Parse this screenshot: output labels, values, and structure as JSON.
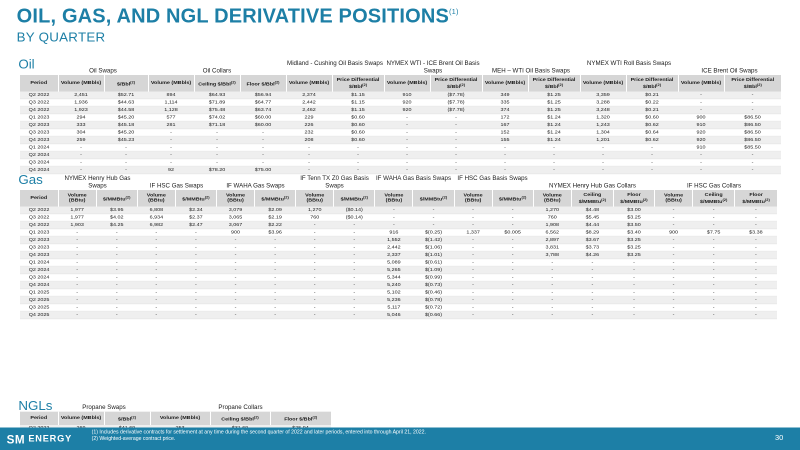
{
  "title": "OIL, GAS, AND NGL DERIVATIVE POSITIONS",
  "title_sup": "(1)",
  "subtitle": "BY QUARTER",
  "oil": {
    "label": "Oil",
    "groups": [
      "Oil Swaps",
      "Oil Collars",
      "Midland - Cushing Oil Basis Swaps",
      "NYMEX WTI - ICE Brent Oil Basis Swaps",
      "MEH – WTI Oil Basis Swaps",
      "NYMEX WTI Roll Basis Swaps",
      "ICE Brent Oil Swaps"
    ],
    "headers": [
      "Period",
      "Volume (MBbls)",
      "$/Bbl(2)",
      "Volume (MBbls)",
      "Ceiling $/Bbl(2)",
      "Floor $/Bbl(2)",
      "Volume (MBbls)",
      "Price Differential $/Bbl(2)",
      "Volume (MBbls)",
      "Price Differential $/Bbl(2)",
      "Volume (MBbls)",
      "Price Differential $/Bbl(2)",
      "Volume (MBbls)",
      "Price Differential $/Bbl(2)",
      "Volume (MBbls)",
      "Price Differential $/Bbl(2)"
    ],
    "rows": [
      [
        "Q2 2022",
        "2,451",
        "$52.71",
        "894",
        "$64.93",
        "$56.94",
        "2,374",
        "$1.15",
        "910",
        "($7.78)",
        "349",
        "$1.25",
        "3,359",
        "$0.21",
        "-",
        "-"
      ],
      [
        "Q3 2022",
        "1,936",
        "$44.63",
        "1,114",
        "$71.89",
        "$64.77",
        "2,442",
        "$1.15",
        "920",
        "($7.78)",
        "335",
        "$1.25",
        "3,288",
        "$0.22",
        "-",
        "-"
      ],
      [
        "Q4 2022",
        "1,923",
        "$44.58",
        "1,128",
        "$75.48",
        "$63.74",
        "2,462",
        "$1.15",
        "920",
        "($7.78)",
        "374",
        "$1.25",
        "3,248",
        "$0.21",
        "-",
        "-"
      ],
      [
        "Q1 2023",
        "294",
        "$45.20",
        "577",
        "$74.02",
        "$60.00",
        "229",
        "$0.60",
        "-",
        "-",
        "172",
        "$1.24",
        "1,320",
        "$0.60",
        "900",
        "$86.50"
      ],
      [
        "Q2 2023",
        "333",
        "$45.18",
        "281",
        "$71.18",
        "$60.00",
        "226",
        "$0.60",
        "-",
        "-",
        "167",
        "$1.24",
        "1,243",
        "$0.62",
        "910",
        "$86.50"
      ],
      [
        "Q3 2023",
        "304",
        "$45.20",
        "-",
        "-",
        "-",
        "232",
        "$0.60",
        "-",
        "-",
        "152",
        "$1.24",
        "1,304",
        "$0.64",
        "920",
        "$86.50"
      ],
      [
        "Q4 2023",
        "259",
        "$45.23",
        "-",
        "-",
        "-",
        "208",
        "$0.60",
        "-",
        "-",
        "155",
        "$1.24",
        "1,201",
        "$0.62",
        "920",
        "$86.50"
      ],
      [
        "Q1 2024",
        "-",
        "-",
        "-",
        "-",
        "-",
        "-",
        "-",
        "-",
        "-",
        "-",
        "-",
        "-",
        "-",
        "910",
        "$85.50"
      ],
      [
        "Q2 2024",
        "-",
        "-",
        "-",
        "-",
        "-",
        "-",
        "-",
        "-",
        "-",
        "-",
        "-",
        "-",
        "-",
        "-",
        "-"
      ],
      [
        "Q3 2024",
        "-",
        "-",
        "-",
        "-",
        "-",
        "-",
        "-",
        "-",
        "-",
        "-",
        "-",
        "-",
        "-",
        "-",
        "-"
      ],
      [
        "Q4 2024",
        "-",
        "-",
        "92",
        "$78.20",
        "$75.00",
        "-",
        "-",
        "-",
        "-",
        "-",
        "-",
        "-",
        "-",
        "-",
        "-"
      ]
    ]
  },
  "gas": {
    "label": "Gas",
    "groups": [
      "NYMEX Henry Hub Gas Swaps",
      "IF HSC Gas Swaps",
      "IF WAHA Gas Swaps",
      "IF Tenn TX Z0 Gas Basis Swaps",
      "IF WAHA Gas Basis Swaps",
      "IF HSC Gas Basis Swaps",
      "NYMEX Henry Hub Gas Collars",
      "IF HSC Gas Collars"
    ],
    "headers": [
      "Period",
      "Volume (BBtu)",
      "$/MMBtu(2)",
      "Volume (BBtu)",
      "$/MMBtu(2)",
      "Volume (BBtu)",
      "$/MMBtu(2)",
      "Volume (BBtu)",
      "$/MMBtu(2)",
      "Volume (BBtu)",
      "$/MMBtu(2)",
      "Volume (BBtu)",
      "$/MMBtu(2)",
      "Volume (BBtu)",
      "Ceiling $/MMBtu(2)",
      "Floor $/MMBtu(2)",
      "Volume (BBtu)",
      "Ceiling $/MMBtu(2)",
      "Floor $/MMBtu(2)"
    ],
    "rows": [
      [
        "Q2 2022",
        "1,977",
        "$3.95",
        "6,808",
        "$2.34",
        "3,079",
        "$2.09",
        "1,270",
        "($0.14)",
        "-",
        "-",
        "-",
        "-",
        "1,270",
        "$4.48",
        "$3.00",
        "-",
        "-",
        "-"
      ],
      [
        "Q3 2022",
        "1,977",
        "$4.02",
        "6,934",
        "$2.37",
        "3,065",
        "$2.19",
        "760",
        "($0.14)",
        "-",
        "-",
        "-",
        "-",
        "760",
        "$5.45",
        "$3.25",
        "-",
        "-",
        "-"
      ],
      [
        "Q4 2022",
        "1,903",
        "$4.25",
        "6,982",
        "$2.47",
        "3,067",
        "$2.22",
        "-",
        "-",
        "-",
        "-",
        "-",
        "-",
        "1,908",
        "$4.44",
        "$3.50",
        "-",
        "-",
        "-"
      ],
      [
        "Q1 2023",
        "-",
        "-",
        "-",
        "-",
        "900",
        "$3.96",
        "-",
        "-",
        "916",
        "$(0.25)",
        "1,337",
        "$0.005",
        "6,562",
        "$8.29",
        "$3.40",
        "900",
        "$7.75",
        "$3.38"
      ],
      [
        "Q2 2023",
        "-",
        "-",
        "-",
        "-",
        "-",
        "-",
        "-",
        "-",
        "1,552",
        "$(1.42)",
        "-",
        "-",
        "2,897",
        "$3.67",
        "$3.25",
        "-",
        "-",
        "-"
      ],
      [
        "Q3 2023",
        "-",
        "-",
        "-",
        "-",
        "-",
        "-",
        "-",
        "-",
        "2,442",
        "$(1.06)",
        "-",
        "-",
        "3,831",
        "$3.73",
        "$3.25",
        "-",
        "-",
        "-"
      ],
      [
        "Q4 2023",
        "-",
        "-",
        "-",
        "-",
        "-",
        "-",
        "-",
        "-",
        "2,337",
        "$(1.01)",
        "-",
        "-",
        "3,788",
        "$4.26",
        "$3.25",
        "-",
        "-",
        "-"
      ],
      [
        "Q1 2024",
        "-",
        "-",
        "-",
        "-",
        "-",
        "-",
        "-",
        "-",
        "5,089",
        "$(0.61)",
        "-",
        "-",
        "-",
        "-",
        "-",
        "-",
        "-",
        "-"
      ],
      [
        "Q2 2024",
        "-",
        "-",
        "-",
        "-",
        "-",
        "-",
        "-",
        "-",
        "5,265",
        "$(1.09)",
        "-",
        "-",
        "-",
        "-",
        "-",
        "-",
        "-",
        "-"
      ],
      [
        "Q3 2024",
        "-",
        "-",
        "-",
        "-",
        "-",
        "-",
        "-",
        "-",
        "5,344",
        "$(0.99)",
        "-",
        "-",
        "-",
        "-",
        "-",
        "-",
        "-",
        "-"
      ],
      [
        "Q4 2024",
        "-",
        "-",
        "-",
        "-",
        "-",
        "-",
        "-",
        "-",
        "5,240",
        "$(0.73)",
        "-",
        "-",
        "-",
        "-",
        "-",
        "-",
        "-",
        "-"
      ],
      [
        "Q1 2025",
        "-",
        "-",
        "-",
        "-",
        "-",
        "-",
        "-",
        "-",
        "5,102",
        "$(0.46)",
        "-",
        "-",
        "-",
        "-",
        "-",
        "-",
        "-",
        "-"
      ],
      [
        "Q2 2025",
        "-",
        "-",
        "-",
        "-",
        "-",
        "-",
        "-",
        "-",
        "5,236",
        "$(0.78)",
        "-",
        "-",
        "-",
        "-",
        "-",
        "-",
        "-",
        "-"
      ],
      [
        "Q3 2025",
        "-",
        "-",
        "-",
        "-",
        "-",
        "-",
        "-",
        "-",
        "5,117",
        "$(0.72)",
        "-",
        "-",
        "-",
        "-",
        "-",
        "-",
        "-",
        "-"
      ],
      [
        "Q4 2025",
        "-",
        "-",
        "-",
        "-",
        "-",
        "-",
        "-",
        "-",
        "5,046",
        "$(0.66)",
        "-",
        "-",
        "-",
        "-",
        "-",
        "-",
        "-",
        "-"
      ]
    ]
  },
  "ngl": {
    "label": "NGLs",
    "groups": [
      "Propane Swaps",
      "Propane Collars"
    ],
    "headers": [
      "Period",
      "Volume (MBbls)",
      "$/Bbl(2)",
      "Volume (MBbls)",
      "Ceiling $/Bbl(2)",
      "Floor $/Bbl(2)"
    ],
    "rows": [
      [
        "Q2 2022",
        "269",
        "$41.69",
        "253",
        "$31.69",
        "$25.94"
      ],
      [
        "Q3 2022",
        "106",
        "$35.70",
        "164",
        "$27.84",
        "$24.09"
      ],
      [
        "Q4 2022",
        "113",
        "$35.91",
        "173",
        "$28.13",
        "$24.11"
      ]
    ]
  },
  "footer": {
    "logo_sm": "SM",
    "logo_energy": "ENERGY",
    "note1": "(1)   Includes derivative contracts for settlement at any time during the second quarter of 2022 and later periods, entered into through April 21, 2022.",
    "note2": "(2)   Weighted-average contract price.",
    "page": "30"
  },
  "colors": {
    "accent": "#1d7fa6",
    "header_fill": "#d6d6d6",
    "row_shade": "#efefef"
  }
}
